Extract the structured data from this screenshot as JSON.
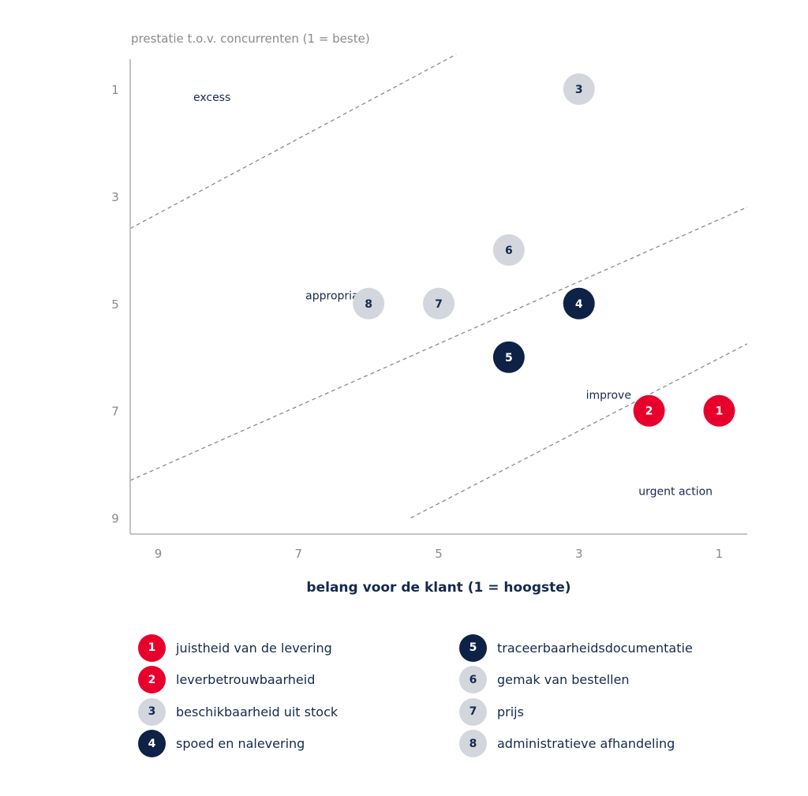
{
  "chart_data": {
    "type": "scatter",
    "xlabel": "belang voor de klant (1 = hoogste)",
    "ylabel": "prestatie t.o.v. concurrenten (1 = beste)",
    "xlim": [
      9.4,
      0.6
    ],
    "ylim": [
      1,
      9.3
    ],
    "x_ticks": [
      "9",
      "7",
      "5",
      "3",
      "1"
    ],
    "y_ticks": [
      "1",
      "3",
      "5",
      "7",
      "9"
    ],
    "grid": false,
    "zones": [
      {
        "label": "excess",
        "x": 8.5,
        "y": 1.15
      },
      {
        "label": "appropriate",
        "x": 6.9,
        "y": 4.85
      },
      {
        "label": "improve",
        "x": 2.9,
        "y": 6.7
      },
      {
        "label": "urgent action",
        "x": 2.15,
        "y": 8.5
      }
    ],
    "boundary_lines": [
      {
        "x1": 9.4,
        "y1": 3.6,
        "x2": 4.75,
        "y2": 0.35
      },
      {
        "x1": 9.4,
        "y1": 8.3,
        "x2": 0.6,
        "y2": 3.2
      },
      {
        "x1": 5.4,
        "y1": 9.0,
        "x2": 0.6,
        "y2": 5.75
      }
    ],
    "points": [
      {
        "id": "1",
        "x": 1,
        "y": 7,
        "group": "red"
      },
      {
        "id": "2",
        "x": 2,
        "y": 7,
        "group": "red"
      },
      {
        "id": "3",
        "x": 3,
        "y": 1,
        "group": "grey"
      },
      {
        "id": "4",
        "x": 3,
        "y": 5,
        "group": "navy"
      },
      {
        "id": "5",
        "x": 4,
        "y": 6,
        "group": "navy"
      },
      {
        "id": "6",
        "x": 4,
        "y": 4,
        "group": "grey"
      },
      {
        "id": "7",
        "x": 5,
        "y": 5,
        "group": "grey"
      },
      {
        "id": "8",
        "x": 6,
        "y": 5,
        "group": "grey"
      }
    ],
    "colors": {
      "red": "#e8002d",
      "navy": "#0e2147",
      "grey": "#d3d6dd",
      "zone_text": "#142a4e",
      "axis": "#b0b0b0",
      "tick_text": "#8a8a8a",
      "dash": "#8a8a8a"
    }
  },
  "legend": [
    {
      "id": "1",
      "label": "juistheid van de levering",
      "group": "red"
    },
    {
      "id": "2",
      "label": "leverbetrouwbaarheid",
      "group": "red"
    },
    {
      "id": "3",
      "label": "beschikbaarheid uit stock",
      "group": "grey"
    },
    {
      "id": "4",
      "label": "spoed en nalevering",
      "group": "navy"
    },
    {
      "id": "5",
      "label": "traceerbaarheidsdocumentatie",
      "group": "navy"
    },
    {
      "id": "6",
      "label": "gemak van bestellen",
      "group": "grey"
    },
    {
      "id": "7",
      "label": "prijs",
      "group": "grey"
    },
    {
      "id": "8",
      "label": "administratieve afhandeling",
      "group": "grey"
    }
  ]
}
